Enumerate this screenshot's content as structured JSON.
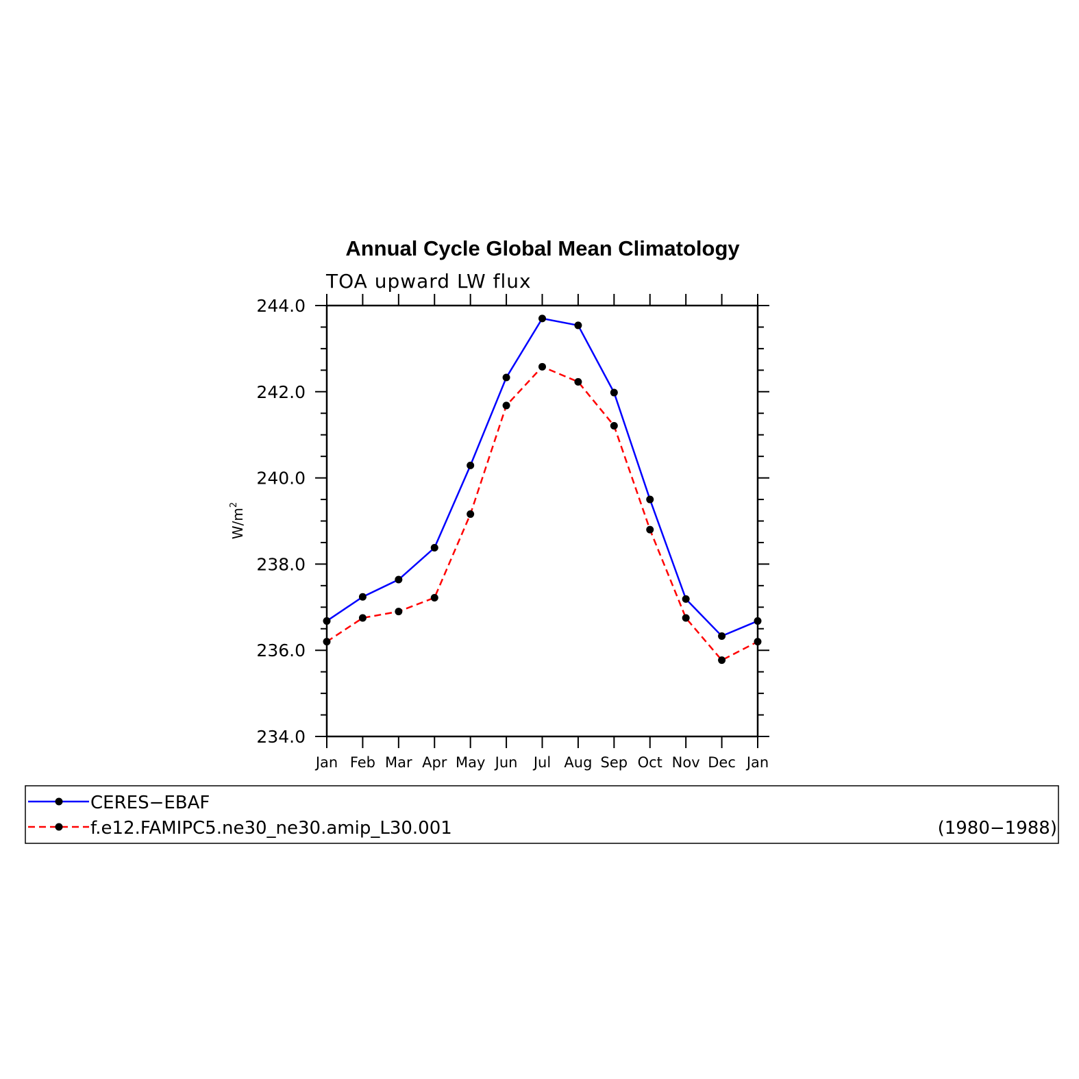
{
  "chart_data": {
    "type": "line",
    "title": "Annual Cycle Global Mean Climatology",
    "subtitle": "TOA upward LW flux",
    "ylabel": "W/m",
    "ylabel_sup": "2",
    "ylim": [
      234.0,
      244.0
    ],
    "yticks": [
      "234.0",
      "236.0",
      "238.0",
      "240.0",
      "242.0",
      "244.0"
    ],
    "categories": [
      "Jan",
      "Feb",
      "Mar",
      "Apr",
      "May",
      "Jun",
      "Jul",
      "Aug",
      "Sep",
      "Oct",
      "Nov",
      "Dec",
      "Jan"
    ],
    "series": [
      {
        "name": "CERES−EBAF",
        "color": "#0000ff",
        "dash": "solid",
        "values": [
          236.68,
          237.24,
          237.64,
          238.38,
          240.29,
          242.33,
          243.7,
          243.54,
          241.98,
          239.5,
          237.19,
          236.33,
          236.68
        ]
      },
      {
        "name": "f.e12.FAMIPC5.ne30_ne30.amip_L30.001",
        "color": "#ff0000",
        "dash": "dashed",
        "values": [
          236.2,
          236.75,
          236.9,
          237.22,
          239.16,
          241.68,
          242.58,
          242.23,
          241.21,
          238.8,
          236.75,
          235.77,
          236.2
        ]
      }
    ],
    "legend": {
      "placement": "bottom",
      "note": "(1980−1988)"
    },
    "marker_color": "#000000"
  }
}
